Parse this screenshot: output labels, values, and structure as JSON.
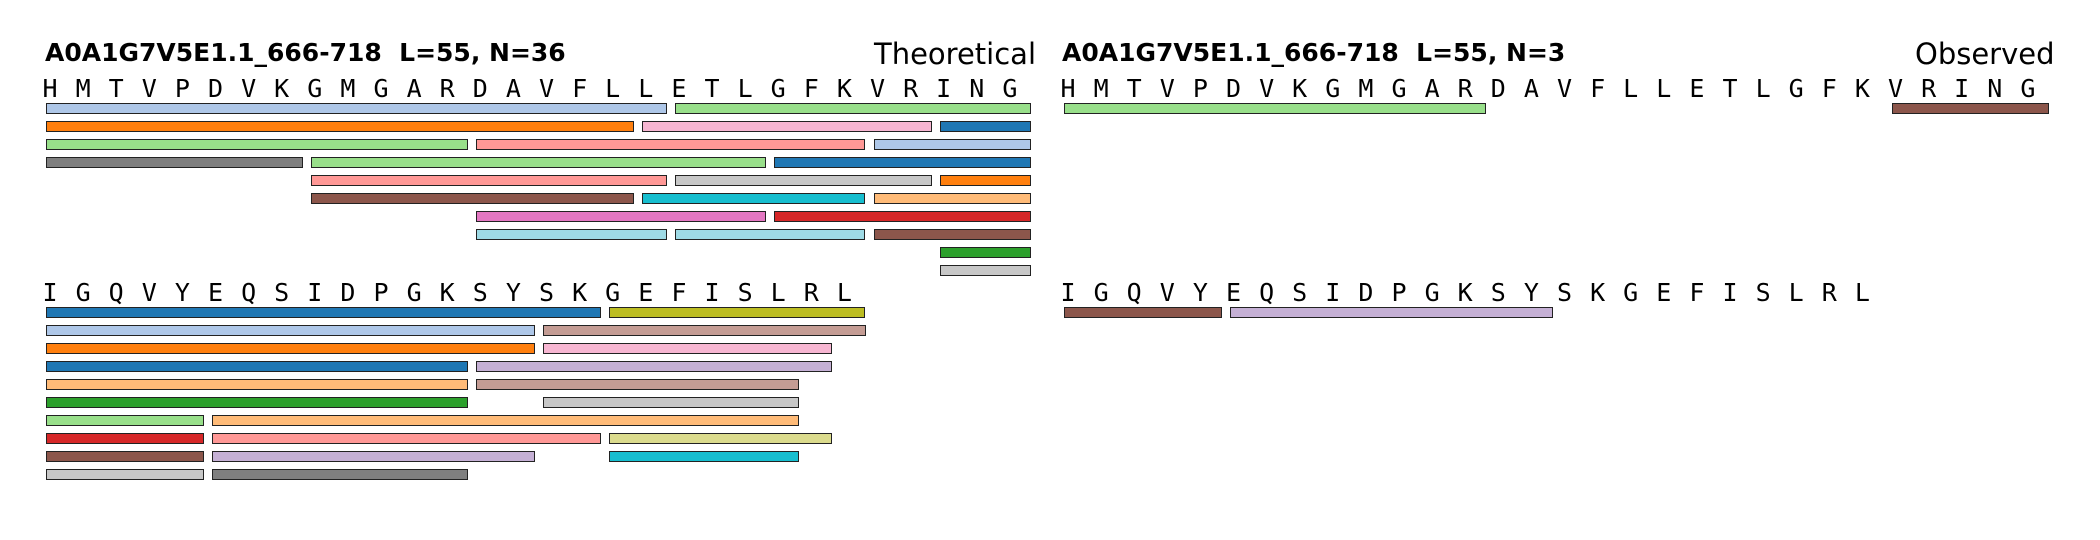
{
  "panels": [
    {
      "id": "theoretical",
      "title": "A0A1G7V5E1.1_666-718  L=55, N=36",
      "label": "Theoretical",
      "blocks": [
        {
          "sequence": "HMTVPDVKGMGARDAVFLLETLGFKVRING",
          "peptides": [
            {
              "row": 0,
              "start": 0,
              "end": 18,
              "color": "#aec7e8"
            },
            {
              "row": 0,
              "start": 19,
              "end": 29,
              "color": "#98df8a"
            },
            {
              "row": 1,
              "start": 0,
              "end": 17,
              "color": "#ff7f0e"
            },
            {
              "row": 1,
              "start": 18,
              "end": 26,
              "color": "#f7b6d2"
            },
            {
              "row": 1,
              "start": 27,
              "end": 29,
              "color": "#1f77b4"
            },
            {
              "row": 2,
              "start": 0,
              "end": 12,
              "color": "#98df8a"
            },
            {
              "row": 2,
              "start": 13,
              "end": 24,
              "color": "#ff9896"
            },
            {
              "row": 2,
              "start": 25,
              "end": 29,
              "color": "#aec7e8"
            },
            {
              "row": 3,
              "start": 0,
              "end": 7,
              "color": "#7f7f7f"
            },
            {
              "row": 3,
              "start": 8,
              "end": 21,
              "color": "#98df8a"
            },
            {
              "row": 3,
              "start": 22,
              "end": 29,
              "color": "#1f77b4"
            },
            {
              "row": 4,
              "start": 8,
              "end": 18,
              "color": "#ff9896"
            },
            {
              "row": 4,
              "start": 19,
              "end": 26,
              "color": "#c7c7c7"
            },
            {
              "row": 4,
              "start": 27,
              "end": 29,
              "color": "#ff7f0e"
            },
            {
              "row": 5,
              "start": 8,
              "end": 17,
              "color": "#8c564b"
            },
            {
              "row": 5,
              "start": 18,
              "end": 24,
              "color": "#17becf"
            },
            {
              "row": 5,
              "start": 25,
              "end": 29,
              "color": "#ffbb78"
            },
            {
              "row": 6,
              "start": 13,
              "end": 21,
              "color": "#e377c2"
            },
            {
              "row": 6,
              "start": 22,
              "end": 29,
              "color": "#d62728"
            },
            {
              "row": 7,
              "start": 13,
              "end": 18,
              "color": "#9edae5"
            },
            {
              "row": 7,
              "start": 19,
              "end": 24,
              "color": "#9edae5"
            },
            {
              "row": 7,
              "start": 25,
              "end": 29,
              "color": "#8c564b"
            },
            {
              "row": 8,
              "start": 27,
              "end": 29,
              "color": "#2ca02c"
            },
            {
              "row": 9,
              "start": 27,
              "end": 29,
              "color": "#c7c7c7"
            }
          ]
        },
        {
          "sequence": "IGQVYEQSIDPGKSYSKGEFISLRL",
          "peptides": [
            {
              "row": 0,
              "start": 0,
              "end": 16,
              "color": "#1f77b4"
            },
            {
              "row": 0,
              "start": 17,
              "end": 24,
              "color": "#bcbd22"
            },
            {
              "row": 1,
              "start": 0,
              "end": 14,
              "color": "#aec7e8"
            },
            {
              "row": 1,
              "start": 15,
              "end": 24,
              "color": "#c49c94"
            },
            {
              "row": 2,
              "start": 0,
              "end": 14,
              "color": "#ff7f0e"
            },
            {
              "row": 2,
              "start": 15,
              "end": 23,
              "color": "#f7b6d2"
            },
            {
              "row": 3,
              "start": 0,
              "end": 12,
              "color": "#1f77b4"
            },
            {
              "row": 3,
              "start": 13,
              "end": 23,
              "color": "#c5b0d5"
            },
            {
              "row": 4,
              "start": 0,
              "end": 12,
              "color": "#ffbb78"
            },
            {
              "row": 4,
              "start": 13,
              "end": 22,
              "color": "#c49c94"
            },
            {
              "row": 5,
              "start": 0,
              "end": 12,
              "color": "#2ca02c"
            },
            {
              "row": 5,
              "start": 15,
              "end": 22,
              "color": "#c7c7c7"
            },
            {
              "row": 6,
              "start": 0,
              "end": 4,
              "color": "#98df8a"
            },
            {
              "row": 6,
              "start": 5,
              "end": 22,
              "color": "#ffbb78"
            },
            {
              "row": 7,
              "start": 0,
              "end": 4,
              "color": "#d62728"
            },
            {
              "row": 7,
              "start": 5,
              "end": 16,
              "color": "#ff9896"
            },
            {
              "row": 7,
              "start": 17,
              "end": 23,
              "color": "#dbdb8d"
            },
            {
              "row": 8,
              "start": 0,
              "end": 4,
              "color": "#8c564b"
            },
            {
              "row": 8,
              "start": 5,
              "end": 14,
              "color": "#c5b0d5"
            },
            {
              "row": 8,
              "start": 17,
              "end": 22,
              "color": "#17becf"
            },
            {
              "row": 9,
              "start": 0,
              "end": 4,
              "color": "#c7c7c7"
            },
            {
              "row": 9,
              "start": 5,
              "end": 12,
              "color": "#7f7f7f"
            }
          ]
        }
      ]
    },
    {
      "id": "observed",
      "title": "A0A1G7V5E1.1_666-718  L=55, N=3",
      "label": "Observed",
      "blocks": [
        {
          "sequence": "HMTVPDVKGMGARDAVFLLETLGFKVRING",
          "peptides": [
            {
              "row": 0,
              "start": 0,
              "end": 12,
              "color": "#98df8a"
            },
            {
              "row": 0,
              "start": 25,
              "end": 29,
              "color": "#8c564b"
            }
          ]
        },
        {
          "sequence": "IGQVYEQSIDPGKSYSKGEFISLRL",
          "peptides": [
            {
              "row": 0,
              "start": 0,
              "end": 4,
              "color": "#8c564b"
            },
            {
              "row": 0,
              "start": 5,
              "end": 14,
              "color": "#c5b0d5"
            }
          ]
        }
      ]
    }
  ]
}
